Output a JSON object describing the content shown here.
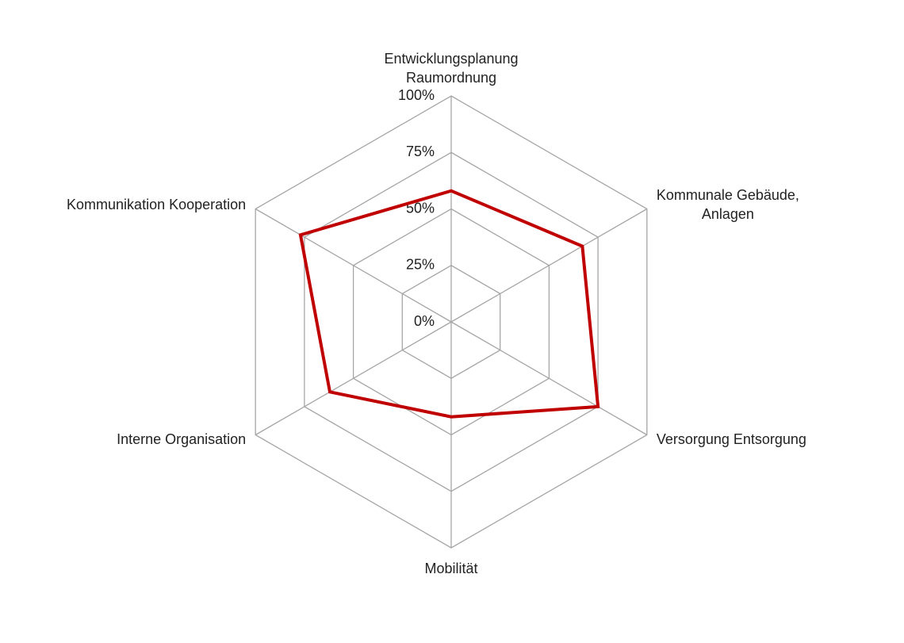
{
  "chart_data": {
    "type": "radar",
    "categories": [
      "Entwicklungsplanung\nRaumordnung",
      "Kommunale Gebäude,\nAnlagen",
      "Versorgung Entsorgung",
      "Mobilität",
      "Interne Organisation",
      "Kommunikation Kooperation"
    ],
    "values": [
      58,
      67,
      75,
      42,
      62,
      77
    ],
    "color": "#c00000",
    "ylim": [
      0,
      100
    ],
    "yticks": [
      {
        "value": 0,
        "label": "0%"
      },
      {
        "value": 25,
        "label": "25%"
      },
      {
        "value": 50,
        "label": "50%"
      },
      {
        "value": 75,
        "label": "75%"
      },
      {
        "value": 100,
        "label": "100%"
      }
    ],
    "grid": true
  }
}
